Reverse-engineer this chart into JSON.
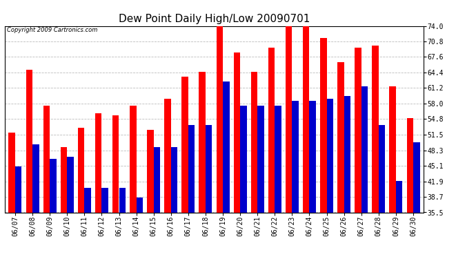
{
  "title": "Dew Point Daily High/Low 20090701",
  "copyright": "Copyright 2009 Cartronics.com",
  "dates": [
    "06/07",
    "06/08",
    "06/09",
    "06/10",
    "06/11",
    "06/12",
    "06/13",
    "06/14",
    "06/15",
    "06/16",
    "06/17",
    "06/18",
    "06/19",
    "06/20",
    "06/21",
    "06/22",
    "06/23",
    "06/24",
    "06/25",
    "06/26",
    "06/27",
    "06/28",
    "06/29",
    "06/30"
  ],
  "highs": [
    52.0,
    65.0,
    57.5,
    49.0,
    53.0,
    56.0,
    55.5,
    57.5,
    52.5,
    59.0,
    63.5,
    64.5,
    74.0,
    68.5,
    64.5,
    69.5,
    74.0,
    74.0,
    71.5,
    66.5,
    69.5,
    70.0,
    61.5,
    55.0
  ],
  "lows": [
    45.0,
    49.5,
    46.5,
    47.0,
    40.5,
    40.5,
    40.5,
    38.5,
    49.0,
    49.0,
    53.5,
    53.5,
    62.5,
    57.5,
    57.5,
    57.5,
    58.5,
    58.5,
    59.0,
    59.5,
    61.5,
    53.5,
    42.0,
    50.0
  ],
  "ylim": [
    35.5,
    74.0
  ],
  "yticks": [
    35.5,
    38.7,
    41.9,
    45.1,
    48.3,
    51.5,
    54.8,
    58.0,
    61.2,
    64.4,
    67.6,
    70.8,
    74.0
  ],
  "bar_color_high": "#ff0000",
  "bar_color_low": "#0000cc",
  "background_color": "#ffffff",
  "grid_color": "#bbbbbb",
  "title_fontsize": 11,
  "tick_fontsize": 7,
  "copyright_fontsize": 6,
  "figsize": [
    6.9,
    3.75
  ],
  "dpi": 100
}
